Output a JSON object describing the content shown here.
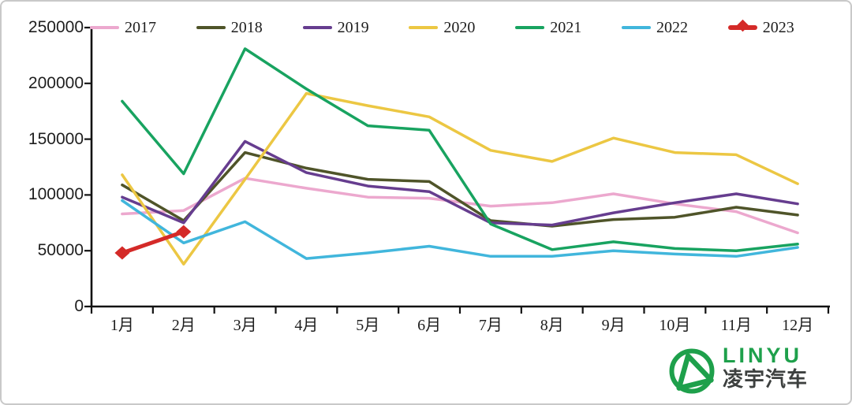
{
  "chart_data": {
    "type": "line",
    "title": "",
    "xlabel": "",
    "ylabel": "",
    "categories": [
      "1月",
      "2月",
      "3月",
      "4月",
      "5月",
      "6月",
      "7月",
      "8月",
      "9月",
      "10月",
      "11月",
      "12月"
    ],
    "ylim": [
      0,
      250000
    ],
    "yticks": [
      0,
      50000,
      100000,
      150000,
      200000,
      250000
    ],
    "grid": false,
    "legend_position": "top",
    "series": [
      {
        "name": "2017",
        "color": "#ECA8CE",
        "marker": "none",
        "values": [
          83000,
          86000,
          115000,
          106000,
          98000,
          97000,
          90000,
          93000,
          101000,
          92000,
          85000,
          66000
        ]
      },
      {
        "name": "2018",
        "color": "#4F5429",
        "marker": "none",
        "values": [
          109000,
          77000,
          138000,
          124000,
          114000,
          112000,
          77000,
          72000,
          78000,
          80000,
          89000,
          82000
        ]
      },
      {
        "name": "2019",
        "color": "#663D8F",
        "marker": "none",
        "values": [
          98000,
          75000,
          148000,
          120000,
          108000,
          103000,
          75000,
          73000,
          84000,
          93000,
          101000,
          92000
        ]
      },
      {
        "name": "2020",
        "color": "#ECC743",
        "marker": "none",
        "values": [
          118000,
          38000,
          114000,
          191000,
          180000,
          170000,
          140000,
          130000,
          151000,
          138000,
          136000,
          110000
        ]
      },
      {
        "name": "2021",
        "color": "#18A360",
        "marker": "none",
        "values": [
          184000,
          119000,
          231000,
          195000,
          162000,
          158000,
          74000,
          51000,
          58000,
          52000,
          50000,
          56000
        ]
      },
      {
        "name": "2022",
        "color": "#41B6DC",
        "marker": "none",
        "values": [
          95000,
          57000,
          76000,
          43000,
          48000,
          54000,
          45000,
          45000,
          50000,
          47000,
          45000,
          53000
        ]
      },
      {
        "name": "2023",
        "color": "#D42A28",
        "marker": "diamond",
        "values": [
          48000,
          67000,
          null,
          null,
          null,
          null,
          null,
          null,
          null,
          null,
          null,
          null
        ]
      }
    ]
  },
  "logo": {
    "brand": "LINYU",
    "brand_cn": "凌宇汽车"
  }
}
